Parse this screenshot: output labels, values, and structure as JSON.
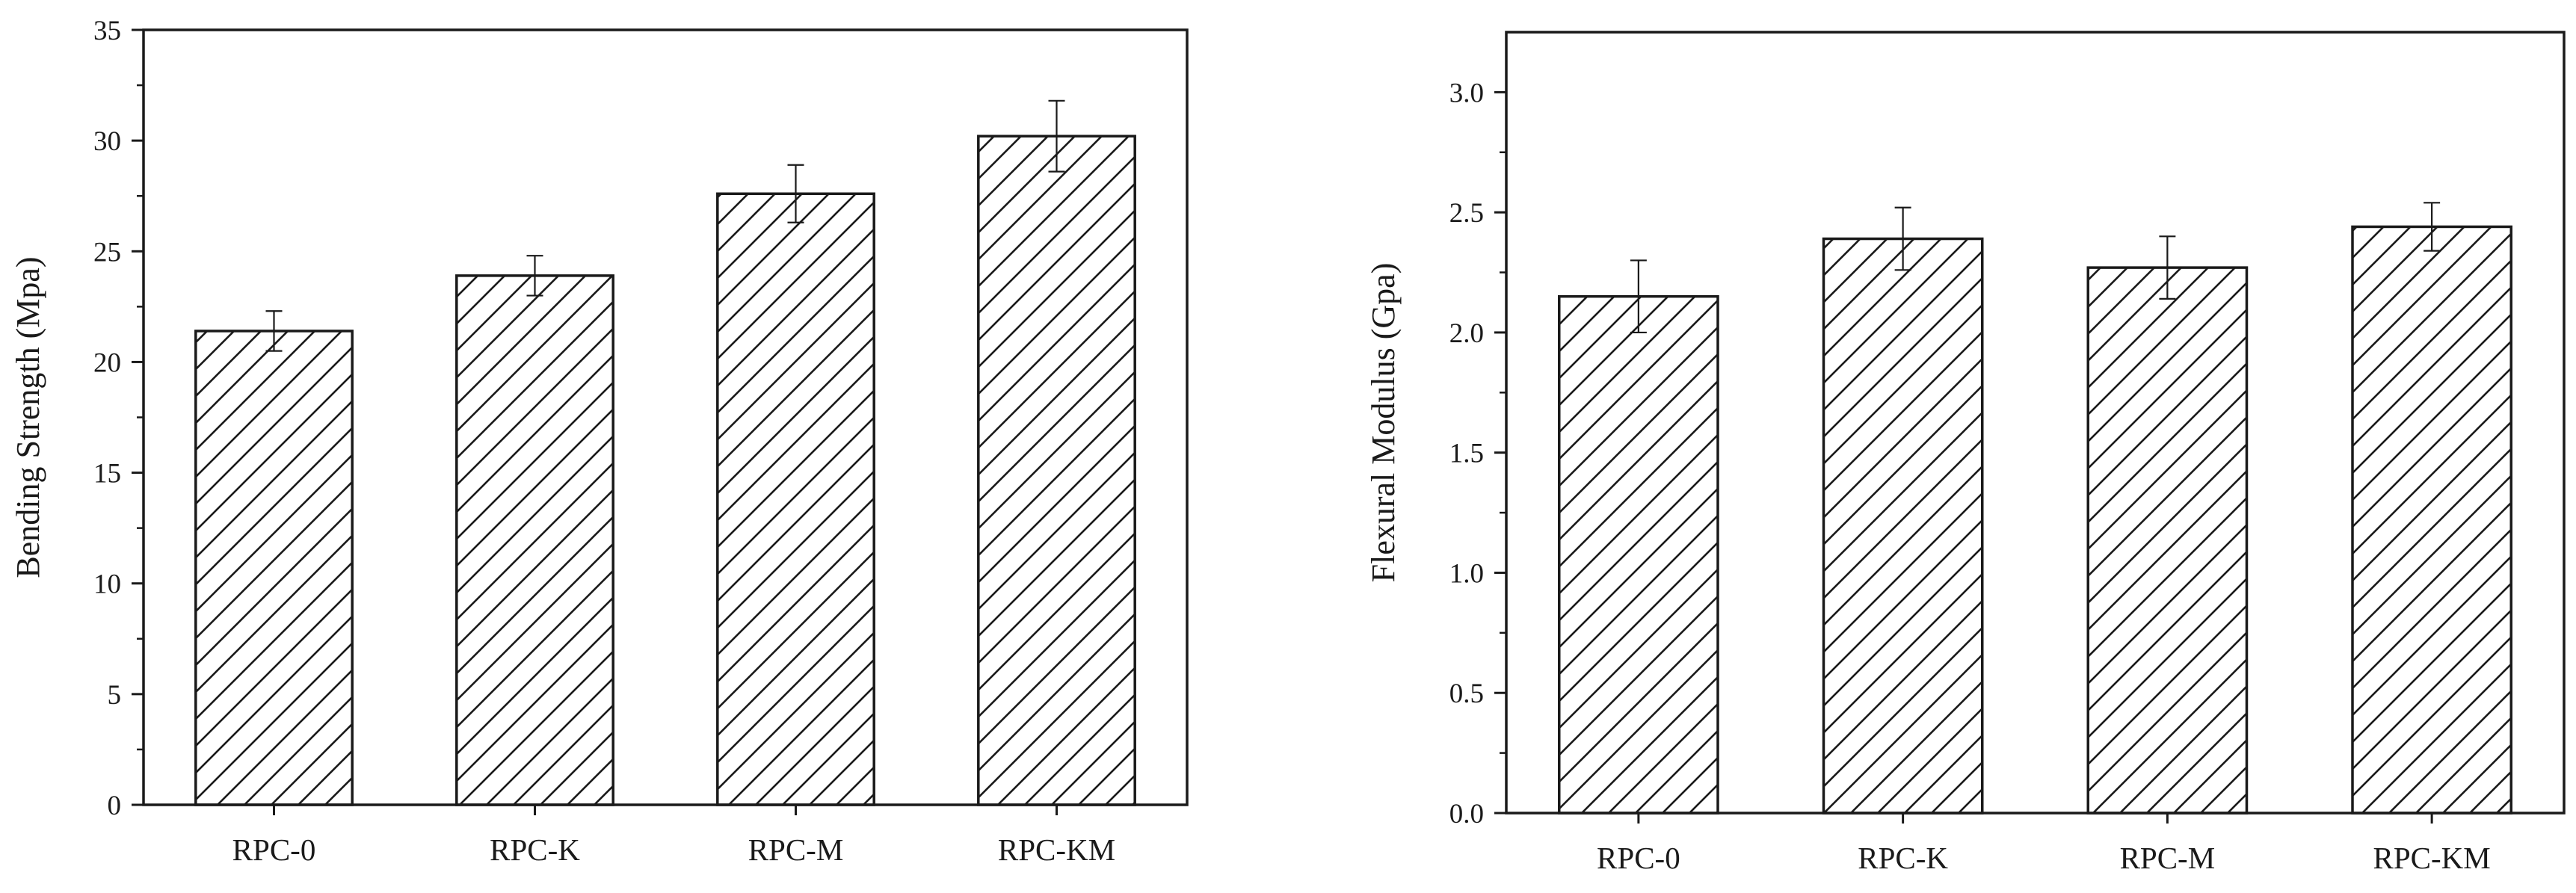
{
  "chart_data": [
    {
      "type": "bar",
      "ylabel": "Bending Strength (Mpa)",
      "xlabel": "",
      "categories": [
        "RPC-0",
        "RPC-K",
        "RPC-M",
        "RPC-KM"
      ],
      "values": [
        21.4,
        23.9,
        27.6,
        30.2
      ],
      "errors": [
        0.9,
        0.9,
        1.3,
        1.6
      ],
      "ylim": [
        0,
        35
      ],
      "yticks": [
        0,
        5,
        10,
        15,
        20,
        25,
        30,
        35
      ],
      "ytick_labels": [
        "0",
        "5",
        "10",
        "15",
        "20",
        "25",
        "30",
        "35"
      ],
      "grid": false,
      "bar_fill": "diagonal-hatch",
      "colors": {
        "stroke": "#1a1a1a",
        "fill": "#ffffff"
      }
    },
    {
      "type": "bar",
      "ylabel": "Flexural Modulus (Gpa)",
      "xlabel": "",
      "categories": [
        "RPC-0",
        "RPC-K",
        "RPC-M",
        "RPC-KM"
      ],
      "values": [
        2.15,
        2.39,
        2.27,
        2.44
      ],
      "errors": [
        0.15,
        0.13,
        0.13,
        0.1
      ],
      "ylim": [
        0,
        3.25
      ],
      "yticks": [
        0,
        0.5,
        1,
        1.5,
        2,
        2.5,
        3
      ],
      "ytick_labels": [
        "0.0",
        "0.5",
        "1.0",
        "1.5",
        "2.0",
        "2.5",
        "3.0"
      ],
      "grid": false,
      "bar_fill": "diagonal-hatch",
      "colors": {
        "stroke": "#1a1a1a",
        "fill": "#ffffff"
      }
    }
  ]
}
